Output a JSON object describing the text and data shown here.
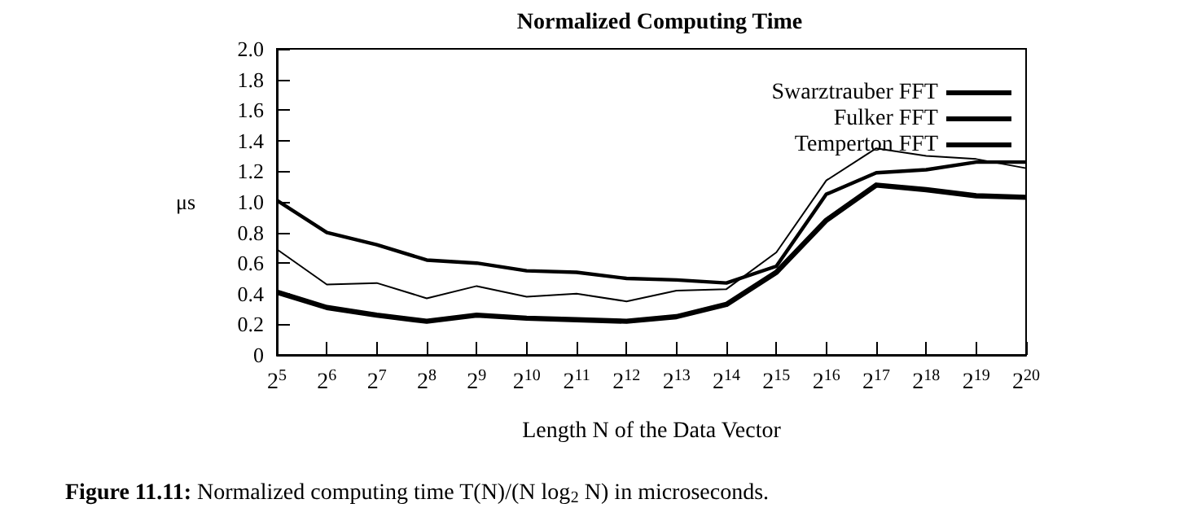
{
  "chart_data": {
    "type": "line",
    "title": "Normalized Computing Time",
    "xlabel": "Length N of the Data Vector",
    "ylabel": "μs",
    "categories": [
      "2$^{5}$",
      "2$^{6}$",
      "2$^{7}$",
      "2$^{8}$",
      "2$^{9}$",
      "2$^{10}$",
      "2$^{11}$",
      "2$^{12}$",
      "2$^{13}$",
      "2$^{14}$",
      "2$^{15}$",
      "2$^{16}$",
      "2$^{17}$",
      "2$^{18}$",
      "2$^{19}$",
      "2$^{20}$"
    ],
    "series": [
      {
        "name": "Swarztrauber FFT",
        "color": "#000000",
        "values": [
          0.41,
          0.31,
          0.26,
          0.22,
          0.26,
          0.24,
          0.23,
          0.22,
          0.25,
          0.33,
          0.54,
          0.88,
          1.11,
          1.08,
          1.04,
          1.03
        ]
      },
      {
        "name": "Fulker FFT",
        "color": "#000000",
        "values": [
          1.01,
          0.8,
          0.72,
          0.62,
          0.6,
          0.55,
          0.54,
          0.5,
          0.49,
          0.47,
          0.58,
          1.05,
          1.19,
          1.21,
          1.26,
          1.26
        ]
      },
      {
        "name": "Temperton FFT",
        "color": "#000000",
        "values": [
          0.69,
          0.46,
          0.47,
          0.37,
          0.45,
          0.38,
          0.4,
          0.35,
          0.42,
          0.43,
          0.67,
          1.14,
          1.35,
          1.3,
          1.28,
          1.22
        ]
      }
    ],
    "ylim": [
      0,
      2.0
    ],
    "yticks": [
      0,
      {
        "value": 0.2,
        "label": "0.2"
      },
      {
        "value": 0.4,
        "label": "0.4"
      },
      {
        "value": 0.6,
        "label": "0.6"
      },
      {
        "value": 0.8,
        "label": "0.8"
      },
      {
        "value": 1.0,
        "label": "1.0"
      },
      {
        "value": 1.2,
        "label": "1.2"
      },
      {
        "value": 1.4,
        "label": "1.4"
      },
      {
        "value": 1.6,
        "label": "1.6"
      },
      {
        "value": 1.8,
        "label": "1.8"
      },
      {
        "value": 2.0,
        "label": "2.0"
      }
    ],
    "grid": false,
    "legend": "top right",
    "marker": "none",
    "line_style": "solid",
    "annotations": [
      "Figure 11.11: Normalized computing time T(N)/(N log$_{2}$ N) in microseconds."
    ]
  }
}
